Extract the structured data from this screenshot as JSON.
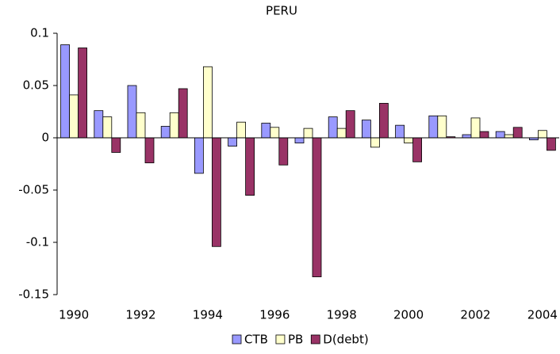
{
  "chart_data": {
    "type": "bar",
    "title": "PERU",
    "categories": [
      "1990",
      null,
      "1992",
      null,
      "1994",
      null,
      "1996",
      null,
      "1998",
      null,
      "2000",
      null,
      "2002",
      null,
      "2004"
    ],
    "series": [
      {
        "name": "CTB",
        "color": "#9999ff",
        "values": [
          0.089,
          0.026,
          0.05,
          0.011,
          -0.034,
          -0.008,
          0.014,
          -0.005,
          0.02,
          0.017,
          0.012,
          0.021,
          0.003,
          0.006,
          -0.002
        ]
      },
      {
        "name": "PB",
        "color": "#ffffcc",
        "values": [
          0.041,
          0.02,
          0.024,
          0.024,
          0.068,
          0.015,
          0.01,
          0.009,
          0.009,
          -0.009,
          -0.005,
          0.021,
          0.019,
          0.003,
          0.007
        ]
      },
      {
        "name": "D(debt)",
        "color": "#993366",
        "values": [
          0.086,
          -0.014,
          -0.024,
          0.047,
          -0.104,
          -0.055,
          -0.026,
          -0.133,
          0.026,
          0.033,
          -0.023,
          0.001,
          0.006,
          0.01,
          -0.012
        ]
      }
    ],
    "ylim": [
      -0.15,
      0.1
    ],
    "yticks": [
      0.1,
      0.05,
      0,
      -0.05,
      -0.1,
      -0.15
    ],
    "grid": false,
    "legend": "bottom"
  }
}
